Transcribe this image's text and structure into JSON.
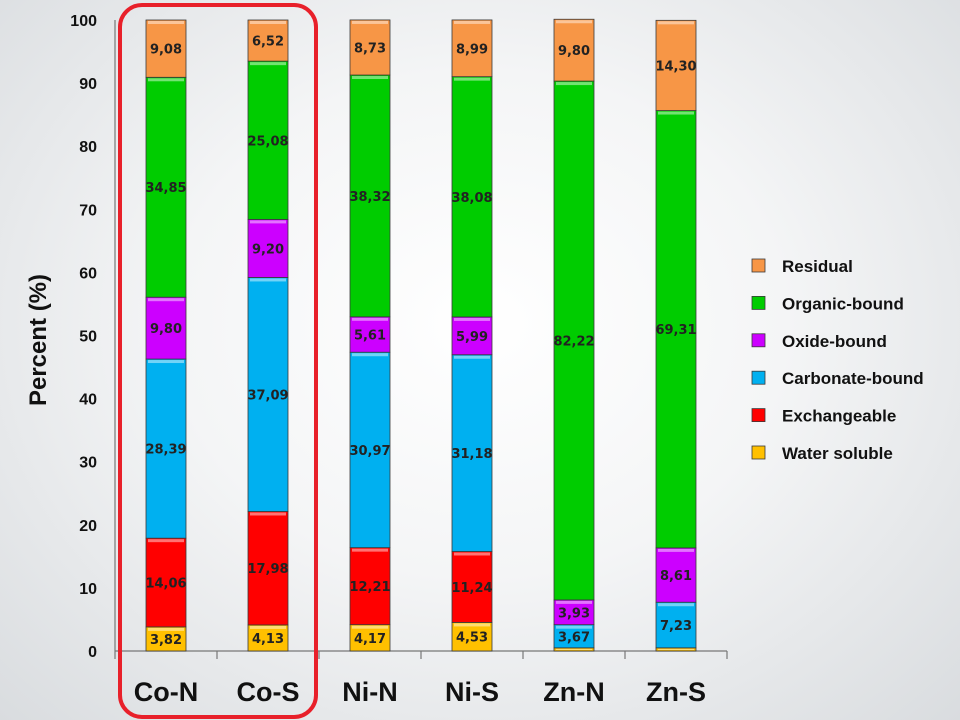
{
  "chart_data": {
    "type": "bar",
    "stacked": true,
    "categories": [
      "Co-N",
      "Co-S",
      "Ni-N",
      "Ni-S",
      "Zn-N",
      "Zn-S"
    ],
    "ylabel": "Percent (%)",
    "ylim": [
      0,
      100
    ],
    "yticks": [
      0,
      10,
      20,
      30,
      40,
      50,
      60,
      70,
      80,
      90,
      100
    ],
    "grid": false,
    "legend_position": "right",
    "highlight": {
      "categories": [
        "Co-N",
        "Co-S"
      ],
      "color": "#e8202a"
    },
    "series": [
      {
        "name": "Water soluble",
        "color": "#ffc000",
        "values": [
          3.82,
          4.13,
          4.17,
          4.53,
          0.5,
          0.5
        ],
        "labels": [
          "3,82",
          "4,13",
          "4,17",
          "4,53",
          "",
          ""
        ]
      },
      {
        "name": "Exchangeable",
        "color": "#ff0000",
        "values": [
          14.06,
          17.98,
          12.21,
          11.24,
          0,
          0
        ],
        "labels": [
          "14,06",
          "17,98",
          "12,21",
          "11,24",
          "",
          ""
        ]
      },
      {
        "name": "Carbonate-bound",
        "color": "#00b0f0",
        "values": [
          28.39,
          37.09,
          30.97,
          31.18,
          3.67,
          7.23
        ],
        "labels": [
          "28,39",
          "37,09",
          "30,97",
          "31,18",
          "3,67",
          "7,23"
        ]
      },
      {
        "name": "Oxide-bound",
        "color": "#cc00ff",
        "values": [
          9.8,
          9.2,
          5.61,
          5.99,
          3.93,
          8.61
        ],
        "labels": [
          "9,80",
          "9,20",
          "5,61",
          "5,99",
          "3,93",
          "8,61"
        ]
      },
      {
        "name": "Organic-bound",
        "color": "#00cc00",
        "values": [
          34.85,
          25.08,
          38.32,
          38.08,
          82.22,
          69.31
        ],
        "labels": [
          "34,85",
          "25,08",
          "38,32",
          "38,08",
          "82,22",
          "69,31"
        ]
      },
      {
        "name": "Residual",
        "color": "#f79646",
        "values": [
          9.08,
          6.52,
          8.73,
          8.99,
          9.8,
          14.3
        ],
        "labels": [
          "9,08",
          "6,52",
          "8,73",
          "8,99",
          "9,80",
          "14,30"
        ]
      }
    ]
  }
}
